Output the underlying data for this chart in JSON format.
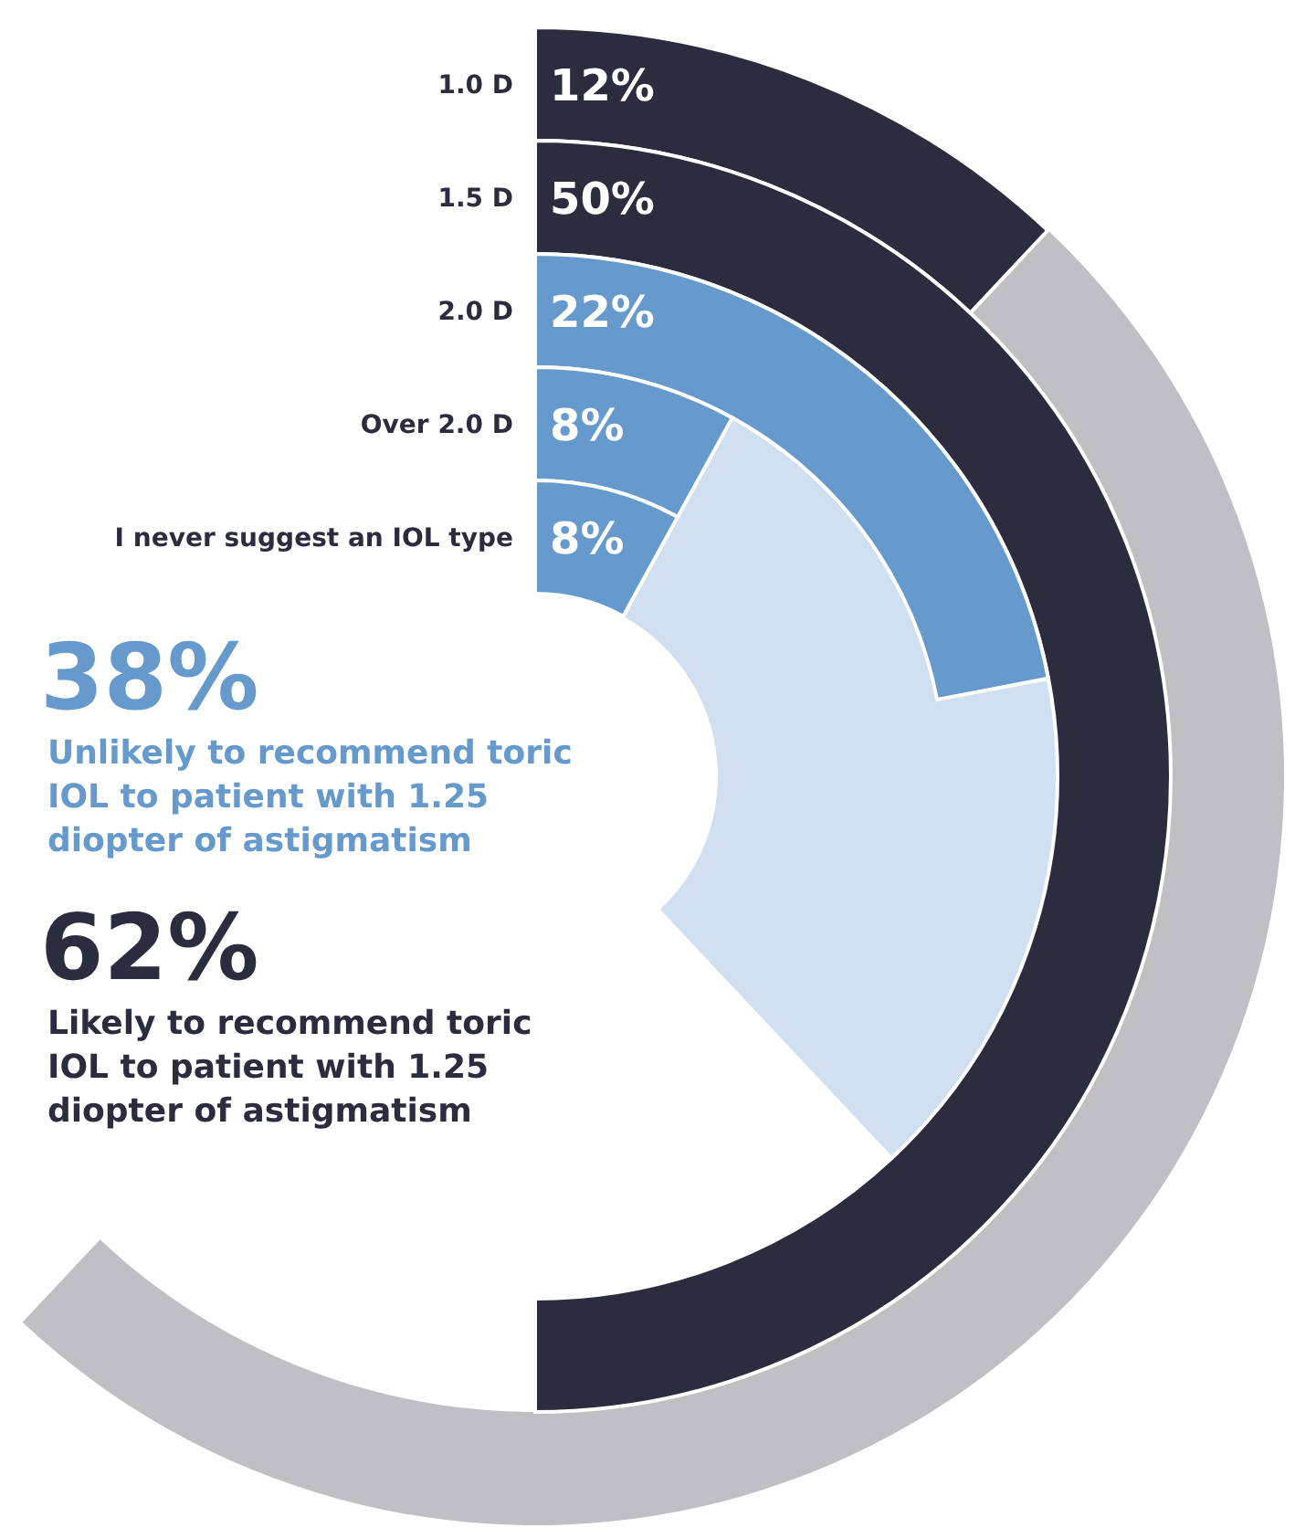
{
  "chart_data": [
    {
      "type": "other",
      "categories": [
        "1.0 D",
        "1.5 D",
        "2.0 D",
        "Over 2.0 D",
        "I never suggest an IOL type"
      ],
      "values": [
        12,
        50,
        22,
        8,
        8
      ],
      "colors": [
        "#2b2c3e",
        "#2b2c3e",
        "#6699cc",
        "#6699cc",
        "#6699cc"
      ],
      "value_labels": [
        "12%",
        "50%",
        "22%",
        "8%",
        "8%"
      ]
    },
    {
      "type": "other",
      "categories": [
        "Unlikely to recommend toric IOL to patient with 1.25 diopter of astigmatism",
        "Likely to recommend toric IOL to patient with 1.25 diopter of astigmatism"
      ],
      "values": [
        38,
        62
      ],
      "colors": [
        "#d0e0f0",
        "#bfbfc4"
      ],
      "value_labels": [
        "38%",
        "62%"
      ]
    }
  ]
}
